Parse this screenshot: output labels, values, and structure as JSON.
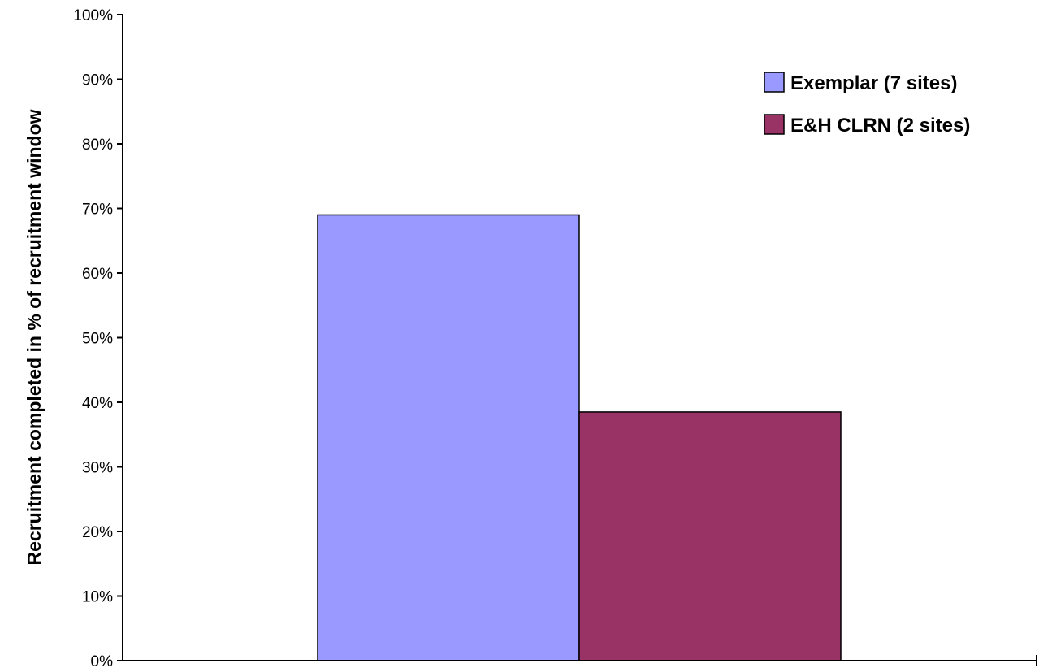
{
  "chart_data": {
    "type": "bar",
    "title": "",
    "xlabel": "",
    "ylabel": "Recruitment completed in % of recruitment window",
    "ylim": [
      0,
      100
    ],
    "yticks": [
      "0%",
      "10%",
      "20%",
      "30%",
      "40%",
      "50%",
      "60%",
      "70%",
      "80%",
      "90%",
      "100%"
    ],
    "categories": [
      ""
    ],
    "series": [
      {
        "name": "Exemplar (7 sites)",
        "values": [
          69
        ],
        "color": "#9999ff"
      },
      {
        "name": "E&H CLRN (2 sites)",
        "values": [
          38.5
        ],
        "color": "#993366"
      }
    ],
    "grid": false,
    "legend_position": "top-right"
  }
}
